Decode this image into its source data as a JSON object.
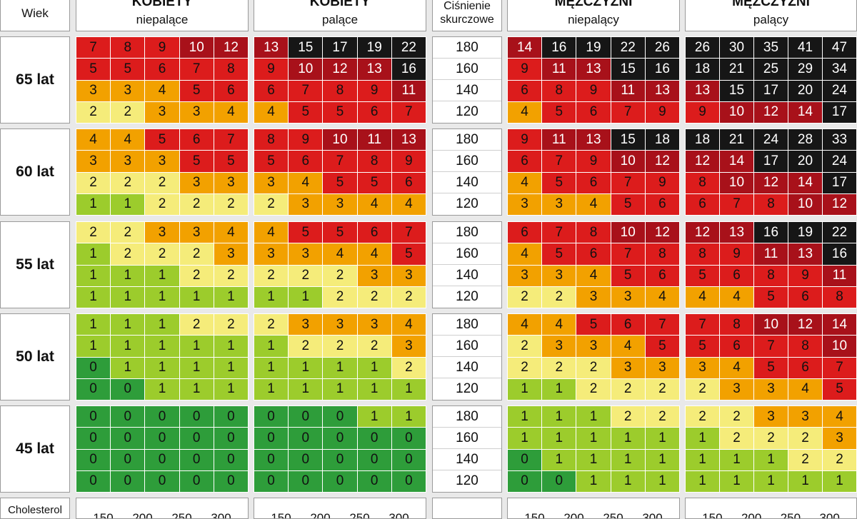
{
  "header": {
    "age_label": "Wiek",
    "bp_label_line1": "Ciśnienie",
    "bp_label_line2": "skurczowe",
    "groups": [
      {
        "title": "KOBIETY",
        "subtitle": "niepalące"
      },
      {
        "title": "KOBIETY",
        "subtitle": "palące"
      },
      {
        "title": "MĘŻCZYŹNI",
        "subtitle": "niepalący"
      },
      {
        "title": "MĘŻCZYŹNI",
        "subtitle": "palący"
      }
    ]
  },
  "footer": {
    "cholesterol_label": "Cholesterol",
    "cholesterol_values": [
      "150",
      "200",
      "250",
      "300"
    ]
  },
  "colors": {
    "dark_green": "#2e9d3a",
    "light_green": "#9ccc2c",
    "yellow": "#f5ec7a",
    "orange": "#f2a100",
    "red": "#dc1c1c",
    "dark_red": "#a8111a",
    "black": "#161616"
  },
  "chart_data": {
    "type": "heatmap",
    "bp_values": [
      "180",
      "160",
      "140",
      "120"
    ],
    "blocks": [
      {
        "age": "65 lat",
        "kobiety_niepalace": [
          [
            7,
            8,
            9,
            10,
            12
          ],
          [
            5,
            5,
            6,
            7,
            8
          ],
          [
            3,
            3,
            4,
            5,
            6
          ],
          [
            2,
            2,
            3,
            3,
            4
          ]
        ],
        "kobiety_palace": [
          [
            13,
            15,
            17,
            19,
            22
          ],
          [
            9,
            10,
            12,
            13,
            16
          ],
          [
            6,
            7,
            8,
            9,
            11
          ],
          [
            4,
            5,
            5,
            6,
            7
          ]
        ],
        "mezczyzni_niepalacy": [
          [
            14,
            16,
            19,
            22,
            26
          ],
          [
            9,
            11,
            13,
            15,
            16
          ],
          [
            6,
            8,
            9,
            11,
            13
          ],
          [
            4,
            5,
            6,
            7,
            9
          ]
        ],
        "mezczyzni_palacy": [
          [
            26,
            30,
            35,
            41,
            47
          ],
          [
            18,
            21,
            25,
            29,
            34
          ],
          [
            13,
            15,
            17,
            20,
            24
          ],
          [
            9,
            10,
            12,
            14,
            17
          ]
        ]
      },
      {
        "age": "60 lat",
        "kobiety_niepalace": [
          [
            4,
            4,
            5,
            6,
            7
          ],
          [
            3,
            3,
            3,
            5,
            5
          ],
          [
            2,
            2,
            2,
            3,
            3
          ],
          [
            1,
            1,
            2,
            2,
            2
          ]
        ],
        "kobiety_palace": [
          [
            8,
            9,
            10,
            11,
            13
          ],
          [
            5,
            6,
            7,
            8,
            9
          ],
          [
            3,
            4,
            5,
            5,
            6
          ],
          [
            2,
            3,
            3,
            4,
            4
          ]
        ],
        "mezczyzni_niepalacy": [
          [
            9,
            11,
            13,
            15,
            18
          ],
          [
            6,
            7,
            9,
            10,
            12
          ],
          [
            4,
            5,
            6,
            7,
            9
          ],
          [
            3,
            3,
            4,
            5,
            6
          ]
        ],
        "mezczyzni_palacy": [
          [
            18,
            21,
            24,
            28,
            33
          ],
          [
            12,
            14,
            17,
            20,
            24
          ],
          [
            8,
            10,
            12,
            14,
            17
          ],
          [
            6,
            7,
            8,
            10,
            12
          ]
        ]
      },
      {
        "age": "55 lat",
        "kobiety_niepalace": [
          [
            2,
            2,
            3,
            3,
            4
          ],
          [
            1,
            2,
            2,
            2,
            3
          ],
          [
            1,
            1,
            1,
            2,
            2
          ],
          [
            1,
            1,
            1,
            1,
            1
          ]
        ],
        "kobiety_palace": [
          [
            4,
            5,
            5,
            6,
            7
          ],
          [
            3,
            3,
            4,
            4,
            5
          ],
          [
            2,
            2,
            2,
            3,
            3
          ],
          [
            1,
            1,
            2,
            2,
            2
          ]
        ],
        "mezczyzni_niepalacy": [
          [
            6,
            7,
            8,
            10,
            12
          ],
          [
            4,
            5,
            6,
            7,
            8
          ],
          [
            3,
            3,
            4,
            5,
            6
          ],
          [
            2,
            2,
            3,
            3,
            4
          ]
        ],
        "mezczyzni_palacy": [
          [
            12,
            13,
            16,
            19,
            22
          ],
          [
            8,
            9,
            11,
            13,
            16
          ],
          [
            5,
            6,
            8,
            9,
            11
          ],
          [
            4,
            4,
            5,
            6,
            8
          ]
        ]
      },
      {
        "age": "50 lat",
        "kobiety_niepalace": [
          [
            1,
            1,
            1,
            2,
            2
          ],
          [
            1,
            1,
            1,
            1,
            1
          ],
          [
            0,
            1,
            1,
            1,
            1
          ],
          [
            0,
            0,
            1,
            1,
            1
          ]
        ],
        "kobiety_palace": [
          [
            2,
            3,
            3,
            3,
            4
          ],
          [
            1,
            2,
            2,
            2,
            3
          ],
          [
            1,
            1,
            1,
            1,
            2
          ],
          [
            1,
            1,
            1,
            1,
            1
          ]
        ],
        "mezczyzni_niepalacy": [
          [
            4,
            4,
            5,
            6,
            7
          ],
          [
            2,
            3,
            3,
            4,
            5
          ],
          [
            2,
            2,
            2,
            3,
            3
          ],
          [
            1,
            1,
            2,
            2,
            2
          ]
        ],
        "mezczyzni_palacy": [
          [
            7,
            8,
            10,
            12,
            14
          ],
          [
            5,
            6,
            7,
            8,
            10
          ],
          [
            3,
            4,
            5,
            6,
            7
          ],
          [
            2,
            3,
            3,
            4,
            5
          ]
        ]
      },
      {
        "age": "45 lat",
        "kobiety_niepalace": [
          [
            0,
            0,
            0,
            0,
            0
          ],
          [
            0,
            0,
            0,
            0,
            0
          ],
          [
            0,
            0,
            0,
            0,
            0
          ],
          [
            0,
            0,
            0,
            0,
            0
          ]
        ],
        "kobiety_palace": [
          [
            0,
            0,
            0,
            1,
            1
          ],
          [
            0,
            0,
            0,
            0,
            0
          ],
          [
            0,
            0,
            0,
            0,
            0
          ],
          [
            0,
            0,
            0,
            0,
            0
          ]
        ],
        "mezczyzni_niepalacy": [
          [
            1,
            1,
            1,
            2,
            2
          ],
          [
            1,
            1,
            1,
            1,
            1
          ],
          [
            0,
            1,
            1,
            1,
            1
          ],
          [
            0,
            0,
            1,
            1,
            1
          ]
        ],
        "mezczyzni_palacy": [
          [
            2,
            2,
            3,
            3,
            4
          ],
          [
            1,
            2,
            2,
            2,
            3
          ],
          [
            1,
            1,
            1,
            2,
            2
          ],
          [
            1,
            1,
            1,
            1,
            1
          ]
        ]
      }
    ]
  }
}
